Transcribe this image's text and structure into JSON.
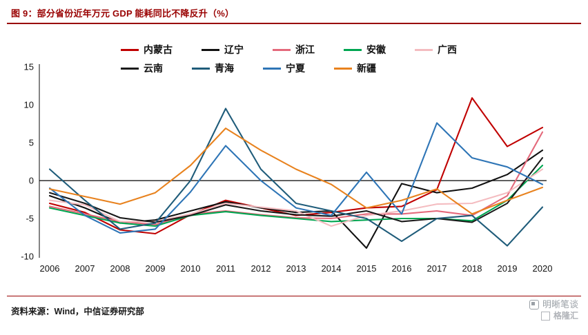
{
  "header": {
    "title": "图 9：部分省份近年万元 GDP 能耗同比不降反升（%）"
  },
  "footer": {
    "source": "资料来源：Wind，中信证券研究部",
    "watermark_1": "明晰笔谈",
    "watermark_2": "格隆汇"
  },
  "colors": {
    "accent_red": "#990000",
    "axis": "#333333",
    "zero_line": "#000000"
  },
  "chart_data": {
    "type": "line",
    "title": "部分省份近年万元 GDP 能耗同比不降反升（%）",
    "xlabel": "",
    "ylabel": "",
    "x": [
      "2006",
      "2007",
      "2008",
      "2009",
      "2010",
      "2011",
      "2012",
      "2013",
      "2014",
      "2015",
      "2016",
      "2017",
      "2018",
      "2019",
      "2020"
    ],
    "ylim": [
      -10,
      15
    ],
    "yticks": [
      15,
      10,
      5,
      0,
      -5,
      -10
    ],
    "grid": false,
    "legend_position": "top",
    "series": [
      {
        "name": "内蒙古",
        "color": "#C00000",
        "values": [
          -3.0,
          -4.2,
          -6.5,
          -7.0,
          -4.5,
          -2.6,
          -3.6,
          -4.6,
          -4.2,
          -3.6,
          -3.4,
          -1.2,
          10.9,
          4.5,
          7.0
        ]
      },
      {
        "name": "辽宁",
        "color": "#111111",
        "values": [
          -2.0,
          -3.6,
          -5.6,
          -5.2,
          -4.0,
          -2.8,
          -3.6,
          -4.2,
          -4.0,
          -8.9,
          -0.4,
          -1.6,
          -1.0,
          0.8,
          4.0
        ]
      },
      {
        "name": "浙江",
        "color": "#E4697B",
        "values": [
          -3.4,
          -4.4,
          -5.4,
          -5.8,
          -4.4,
          -4.0,
          -4.5,
          -4.9,
          -5.0,
          -4.4,
          -4.4,
          -4.0,
          -4.6,
          -2.0,
          6.4
        ]
      },
      {
        "name": "安徽",
        "color": "#00A651",
        "values": [
          -3.6,
          -4.6,
          -5.6,
          -6.0,
          -4.6,
          -4.1,
          -4.6,
          -5.0,
          -5.4,
          -5.2,
          -5.0,
          -5.0,
          -5.3,
          -2.6,
          2.0
        ]
      },
      {
        "name": "广西",
        "color": "#F4BCC0",
        "values": [
          -2.6,
          -3.2,
          -5.4,
          -5.4,
          -4.4,
          -3.0,
          -3.5,
          -4.0,
          -6.0,
          -4.6,
          -4.0,
          -3.1,
          -3.0,
          -1.6,
          1.5
        ]
      },
      {
        "name": "云南",
        "color": "#1A1A1A",
        "values": [
          -1.6,
          -3.0,
          -4.9,
          -5.5,
          -4.6,
          -3.2,
          -4.0,
          -4.5,
          -4.7,
          -4.0,
          -5.4,
          -5.0,
          -5.5,
          -3.0,
          3.0
        ]
      },
      {
        "name": "青海",
        "color": "#1F5C7A",
        "values": [
          1.5,
          -2.6,
          -6.4,
          -5.6,
          0.0,
          9.5,
          1.5,
          -3.0,
          -4.0,
          -5.0,
          -8.0,
          -5.0,
          -4.6,
          -8.6,
          -3.5
        ]
      },
      {
        "name": "宁夏",
        "color": "#2E75B6",
        "values": [
          -1.0,
          -4.6,
          -6.9,
          -6.4,
          -1.5,
          4.6,
          0.0,
          -3.6,
          -4.6,
          1.1,
          -4.4,
          7.6,
          3.0,
          1.8,
          -0.5
        ]
      },
      {
        "name": "新疆",
        "color": "#E8821E",
        "values": [
          -1.1,
          -2.1,
          -3.1,
          -1.6,
          2.0,
          6.9,
          4.0,
          1.5,
          -0.5,
          -3.6,
          -2.6,
          -1.1,
          -4.4,
          -2.6,
          -0.9
        ]
      }
    ]
  }
}
